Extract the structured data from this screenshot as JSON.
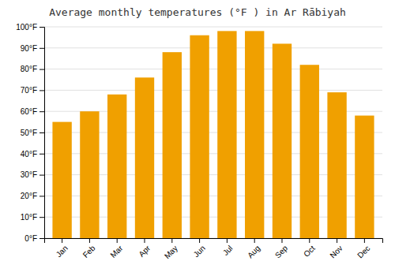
{
  "chart_data": {
    "type": "bar",
    "title": "Average monthly temperatures (°F ) in Ar Rābiyah",
    "categories": [
      "Jan",
      "Feb",
      "Mar",
      "Apr",
      "May",
      "Jun",
      "Jul",
      "Aug",
      "Sep",
      "Oct",
      "Nov",
      "Dec"
    ],
    "values": [
      55,
      60,
      68,
      76,
      88,
      96,
      98,
      98,
      92,
      82,
      69,
      58
    ],
    "color": "#F0A000",
    "ylim": [
      0,
      100
    ],
    "yticks": [
      {
        "value": 0,
        "label": "0°F"
      },
      {
        "value": 10,
        "label": "10°F"
      },
      {
        "value": 20,
        "label": "20°F"
      },
      {
        "value": 30,
        "label": "30°F"
      },
      {
        "value": 40,
        "label": "40°F"
      },
      {
        "value": 50,
        "label": "50°F"
      },
      {
        "value": 60,
        "label": "60°F"
      },
      {
        "value": 70,
        "label": "70°F"
      },
      {
        "value": 80,
        "label": "80°F"
      },
      {
        "value": 90,
        "label": "90°F"
      },
      {
        "value": 100,
        "label": "100°F"
      }
    ],
    "grid": true
  }
}
